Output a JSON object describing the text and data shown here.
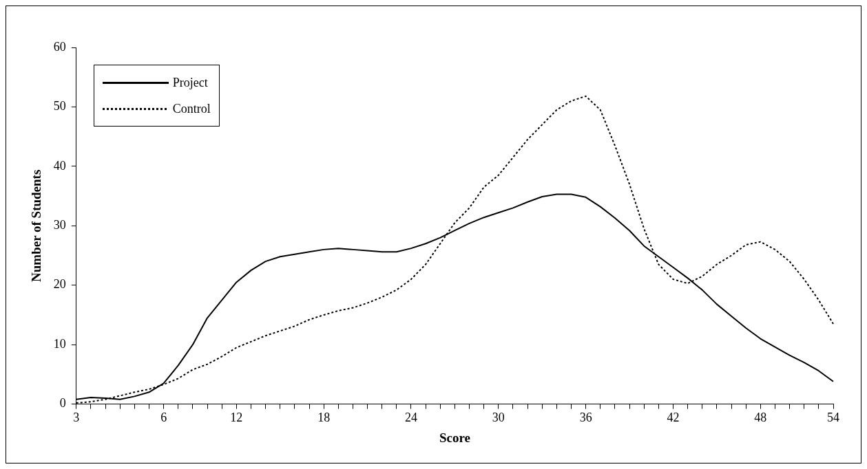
{
  "chart_data": {
    "type": "line",
    "xlabel": "Score",
    "ylabel": "Number of Students",
    "categories": [
      "3",
      null,
      null,
      null,
      null,
      null,
      "6",
      null,
      null,
      null,
      null,
      "12",
      null,
      null,
      null,
      null,
      null,
      "18",
      null,
      null,
      null,
      null,
      null,
      "24",
      null,
      null,
      null,
      null,
      null,
      "30",
      null,
      null,
      null,
      null,
      null,
      "36",
      null,
      null,
      null,
      null,
      null,
      "42",
      null,
      null,
      null,
      null,
      null,
      "48",
      null,
      null,
      null,
      null,
      "54"
    ],
    "series": [
      {
        "name": "Project",
        "color": "#000000",
        "line_style": "solid",
        "values": [
          0.8,
          1.1,
          1.0,
          0.8,
          1.3,
          2.0,
          3.5,
          6.5,
          10,
          14.5,
          17.5,
          20.5,
          22.5,
          24,
          24.8,
          25.2,
          25.6,
          26.0,
          26.2,
          26.0,
          25.8,
          25.6,
          25.6,
          26.2,
          27.0,
          28.0,
          29.2,
          30.4,
          31.4,
          32.2,
          33.0,
          34.0,
          34.9,
          35.3,
          35.3,
          34.8,
          33.2,
          31.3,
          29.2,
          26.6,
          24.8,
          23.0,
          21.2,
          19.2,
          16.8,
          14.8,
          12.8,
          11.0,
          9.6,
          8.2,
          7.0,
          5.6,
          3.8
        ]
      },
      {
        "name": "Control",
        "color": "#000000",
        "line_style": "dotted",
        "values": [
          0.2,
          0.4,
          0.8,
          1.4,
          2.0,
          2.5,
          3.3,
          4.3,
          5.8,
          6.7,
          8.0,
          9.5,
          10.5,
          11.5,
          12.3,
          13.1,
          14.2,
          15.0,
          15.7,
          16.2,
          17.0,
          18.0,
          19.2,
          21.0,
          23.5,
          27.0,
          30.5,
          33.0,
          36.5,
          38.5,
          41.5,
          44.5,
          47.0,
          49.5,
          51.0,
          51.8,
          49.5,
          43.5,
          37.0,
          29.5,
          23.5,
          21.0,
          20.3,
          21.5,
          23.5,
          25.0,
          26.8,
          27.3,
          26.0,
          24.0,
          21.0,
          17.5,
          13.5
        ]
      }
    ],
    "ylim": [
      0,
      60
    ],
    "yticks": [
      0,
      10,
      20,
      30,
      40,
      50,
      60
    ],
    "grid": false,
    "legend": "top left",
    "marker": "none"
  }
}
